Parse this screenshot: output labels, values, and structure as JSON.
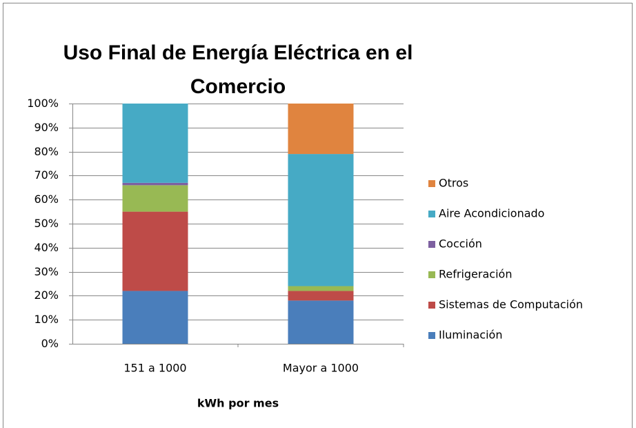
{
  "chart_data": {
    "type": "stacked_bar",
    "title": "Uso Final de Energía Eléctrica en el Comercio",
    "x_label": "kWh por mes",
    "categories": [
      "151 a 1000",
      "Mayor a 1000"
    ],
    "series": [
      {
        "name": "Iluminación",
        "color": "#4a7ebb",
        "values": [
          22,
          18
        ]
      },
      {
        "name": "Sistemas de Computación",
        "color": "#be4b48",
        "values": [
          33,
          4
        ]
      },
      {
        "name": "Refrigeración",
        "color": "#98b954",
        "values": [
          11,
          2
        ]
      },
      {
        "name": "Cocción",
        "color": "#7d60a0",
        "values": [
          1,
          0
        ]
      },
      {
        "name": "Aire Acondicionado",
        "color": "#46aac5",
        "values": [
          33,
          55
        ]
      },
      {
        "name": "Otros",
        "color": "#e0843f",
        "values": [
          0,
          21
        ]
      }
    ],
    "ylim": [
      0,
      100
    ],
    "yticks": [
      {
        "value": 0,
        "label": "0%"
      },
      {
        "value": 10,
        "label": "10%"
      },
      {
        "value": 20,
        "label": "20%"
      },
      {
        "value": 30,
        "label": "30%"
      },
      {
        "value": 40,
        "label": "40%"
      },
      {
        "value": 50,
        "label": "50%"
      },
      {
        "value": 60,
        "label": "60%"
      },
      {
        "value": 70,
        "label": "70%"
      },
      {
        "value": 80,
        "label": "80%"
      },
      {
        "value": 90,
        "label": "90%"
      },
      {
        "value": 100,
        "label": "100%"
      }
    ],
    "grid": true,
    "legend": "right"
  }
}
